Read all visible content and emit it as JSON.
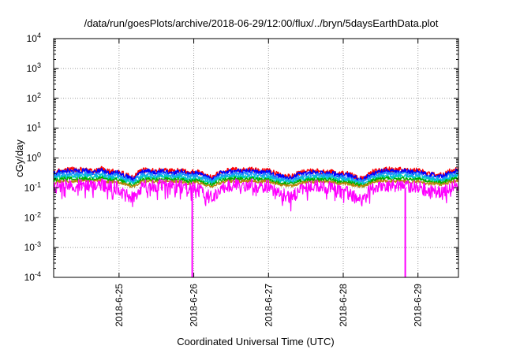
{
  "chart_data": {
    "type": "line",
    "title": "/data/run/goesPlots/archive/2018-06-29/12:00/flux/../bryn/5daysEarthData.plot",
    "xlabel": "Coordinated Universal Time (UTC)",
    "ylabel": "cGy/day",
    "y_scale": "log",
    "ylim_exponent": [
      -4,
      4
    ],
    "y_tick_labels": [
      {
        "base": "10",
        "exp": "4"
      },
      {
        "base": "10",
        "exp": "3"
      },
      {
        "base": "10",
        "exp": "2"
      },
      {
        "base": "10",
        "exp": "1"
      },
      {
        "base": "10",
        "exp": "0"
      },
      {
        "base": "10",
        "exp": "-1"
      },
      {
        "base": "10",
        "exp": "-2"
      },
      {
        "base": "10",
        "exp": "-3"
      },
      {
        "base": "10",
        "exp": "-4"
      }
    ],
    "xlim": [
      "2018-06-24 03:00",
      "2018-06-29 13:00"
    ],
    "x_ticks": [
      {
        "date": "2018-06-25 00:00",
        "label": "2018-6-25"
      },
      {
        "date": "2018-06-26 00:00",
        "label": "2018-6-26"
      },
      {
        "date": "2018-06-27 00:00",
        "label": "2018-6-27"
      },
      {
        "date": "2018-06-28 00:00",
        "label": "2018-6-28"
      },
      {
        "date": "2018-06-29 00:00",
        "label": "2018-6-29"
      }
    ],
    "grid": true,
    "legend": "none",
    "series": [
      {
        "color": "#ff0000",
        "values": [
          0.33,
          0.4,
          0.42,
          0.4,
          0.42,
          0.37,
          0.44,
          0.35,
          0.37,
          0.28,
          0.22,
          0.38,
          0.4,
          0.37,
          0.41,
          0.36,
          0.4,
          0.33,
          0.36,
          0.28,
          0.22,
          0.34,
          0.39,
          0.41,
          0.4,
          0.42,
          0.36,
          0.39,
          0.3,
          0.26,
          0.24,
          0.33,
          0.35,
          0.38,
          0.36,
          0.35,
          0.3,
          0.31,
          0.24,
          0.2,
          0.33,
          0.39,
          0.42,
          0.4,
          0.41,
          0.38,
          0.39,
          0.32,
          0.3,
          0.27,
          0.38,
          0.44
        ]
      },
      {
        "color": "#0000ff",
        "values": [
          0.3,
          0.36,
          0.38,
          0.36,
          0.38,
          0.33,
          0.4,
          0.32,
          0.33,
          0.25,
          0.2,
          0.34,
          0.36,
          0.33,
          0.37,
          0.32,
          0.36,
          0.3,
          0.32,
          0.25,
          0.2,
          0.31,
          0.35,
          0.37,
          0.36,
          0.38,
          0.33,
          0.35,
          0.27,
          0.23,
          0.22,
          0.3,
          0.32,
          0.34,
          0.32,
          0.32,
          0.27,
          0.28,
          0.22,
          0.18,
          0.3,
          0.35,
          0.38,
          0.36,
          0.37,
          0.34,
          0.35,
          0.29,
          0.27,
          0.24,
          0.34,
          0.4
        ]
      },
      {
        "color": "#1e90ff",
        "values": [
          0.25,
          0.29,
          0.3,
          0.29,
          0.3,
          0.27,
          0.31,
          0.26,
          0.27,
          0.21,
          0.17,
          0.27,
          0.29,
          0.27,
          0.3,
          0.26,
          0.29,
          0.24,
          0.26,
          0.21,
          0.17,
          0.25,
          0.28,
          0.3,
          0.29,
          0.3,
          0.26,
          0.28,
          0.22,
          0.19,
          0.18,
          0.24,
          0.26,
          0.27,
          0.26,
          0.26,
          0.22,
          0.23,
          0.18,
          0.16,
          0.24,
          0.28,
          0.3,
          0.29,
          0.3,
          0.27,
          0.28,
          0.23,
          0.22,
          0.2,
          0.27,
          0.31
        ]
      },
      {
        "color": "#00c8c8",
        "values": [
          0.21,
          0.24,
          0.25,
          0.24,
          0.25,
          0.23,
          0.26,
          0.22,
          0.22,
          0.18,
          0.15,
          0.23,
          0.24,
          0.23,
          0.25,
          0.22,
          0.24,
          0.2,
          0.22,
          0.18,
          0.15,
          0.21,
          0.24,
          0.25,
          0.24,
          0.25,
          0.22,
          0.23,
          0.19,
          0.17,
          0.16,
          0.2,
          0.22,
          0.23,
          0.22,
          0.22,
          0.19,
          0.19,
          0.16,
          0.14,
          0.2,
          0.24,
          0.25,
          0.24,
          0.25,
          0.23,
          0.23,
          0.2,
          0.19,
          0.17,
          0.23,
          0.26
        ]
      },
      {
        "color": "#00b000",
        "values": [
          0.18,
          0.2,
          0.21,
          0.2,
          0.21,
          0.19,
          0.22,
          0.19,
          0.19,
          0.15,
          0.13,
          0.19,
          0.2,
          0.19,
          0.21,
          0.19,
          0.2,
          0.17,
          0.19,
          0.15,
          0.13,
          0.18,
          0.2,
          0.21,
          0.2,
          0.21,
          0.19,
          0.2,
          0.16,
          0.14,
          0.14,
          0.17,
          0.19,
          0.19,
          0.19,
          0.19,
          0.16,
          0.16,
          0.14,
          0.12,
          0.17,
          0.2,
          0.21,
          0.2,
          0.21,
          0.19,
          0.2,
          0.17,
          0.16,
          0.15,
          0.19,
          0.22
        ]
      },
      {
        "color": "#b8860b",
        "values": [
          0.15,
          0.17,
          0.17,
          0.17,
          0.17,
          0.16,
          0.18,
          0.16,
          0.16,
          0.13,
          0.11,
          0.16,
          0.17,
          0.16,
          0.17,
          0.16,
          0.17,
          0.14,
          0.16,
          0.13,
          0.11,
          0.15,
          0.17,
          0.17,
          0.17,
          0.17,
          0.16,
          0.17,
          0.14,
          0.12,
          0.12,
          0.14,
          0.16,
          0.16,
          0.16,
          0.16,
          0.14,
          0.14,
          0.12,
          0.11,
          0.15,
          0.17,
          0.17,
          0.17,
          0.17,
          0.16,
          0.17,
          0.14,
          0.14,
          0.13,
          0.16,
          0.18
        ]
      },
      {
        "color": "#ff00ff",
        "values": [
          0.1,
          0.12,
          0.13,
          0.12,
          0.13,
          0.11,
          0.14,
          0.11,
          0.11,
          0.06,
          0.05,
          0.11,
          0.13,
          0.12,
          0.13,
          0.11,
          0.12,
          0.09,
          0.11,
          0.06,
          0.05,
          0.1,
          0.12,
          0.13,
          0.12,
          0.13,
          0.11,
          0.12,
          0.07,
          0.06,
          0.05,
          0.09,
          0.11,
          0.12,
          0.11,
          0.11,
          0.08,
          0.08,
          0.05,
          0.04,
          0.1,
          0.12,
          0.13,
          0.12,
          0.13,
          0.11,
          0.12,
          0.08,
          0.08,
          0.07,
          0.11,
          0.14
        ]
      }
    ],
    "x": [
      "2018-06-24 03:00",
      "2018-06-24 06:00",
      "2018-06-24 09:00",
      "2018-06-24 12:00",
      "2018-06-24 15:00",
      "2018-06-24 18:00",
      "2018-06-24 21:00",
      "2018-06-25 00:00",
      "2018-06-25 03:00",
      "2018-06-25 06:00",
      "2018-06-25 09:00",
      "2018-06-25 12:00",
      "2018-06-25 15:00",
      "2018-06-25 18:00",
      "2018-06-25 21:00",
      "2018-06-26 00:00",
      "2018-06-26 03:00",
      "2018-06-26 06:00",
      "2018-06-26 09:00",
      "2018-06-26 12:00",
      "2018-06-26 15:00",
      "2018-06-26 18:00",
      "2018-06-26 21:00",
      "2018-06-27 00:00",
      "2018-06-27 03:00",
      "2018-06-27 06:00",
      "2018-06-27 09:00",
      "2018-06-27 12:00",
      "2018-06-27 15:00",
      "2018-06-27 18:00",
      "2018-06-27 21:00",
      "2018-06-28 00:00",
      "2018-06-28 03:00",
      "2018-06-28 06:00",
      "2018-06-28 09:00",
      "2018-06-28 12:00",
      "2018-06-28 15:00",
      "2018-06-28 18:00",
      "2018-06-28 21:00",
      "2018-06-29 00:00",
      "2018-06-29 03:00",
      "2018-06-29 06:00",
      "2018-06-29 09:00",
      "2018-06-29 12:00",
      "2018-06-29 13:00",
      "2018-06-24 03:00",
      "2018-06-24 03:00",
      "2018-06-24 03:00",
      "2018-06-24 03:00",
      "2018-06-24 03:00",
      "2018-06-24 03:00",
      "2018-06-24 03:00"
    ],
    "dropouts": [
      {
        "series_color": "#ff00ff",
        "start": "2018-06-25 23:15",
        "end": "2018-06-25 23:45",
        "value": 0.0001
      },
      {
        "series_color": "#ff00ff",
        "start": "2018-06-28 19:40",
        "end": "2018-06-28 19:55",
        "value": 0.0001
      }
    ]
  }
}
